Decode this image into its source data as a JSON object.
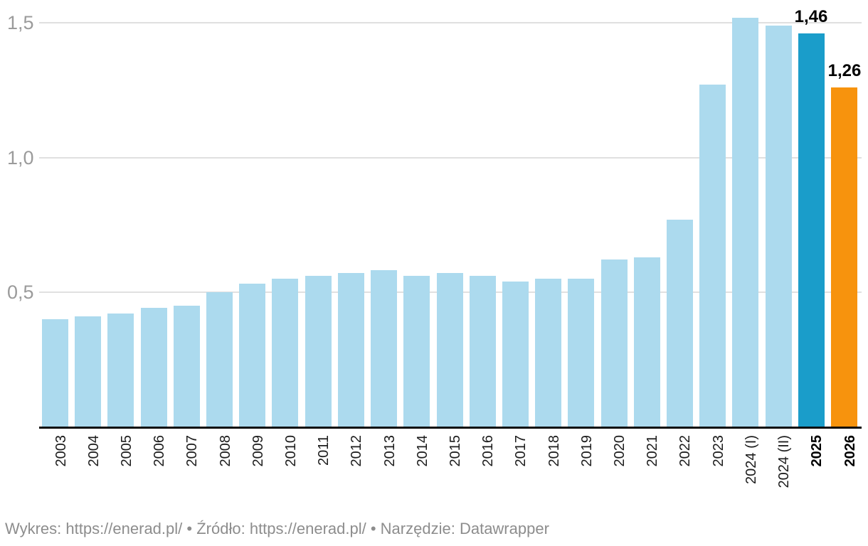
{
  "chart_data": {
    "type": "bar",
    "categories": [
      "2003",
      "2004",
      "2005",
      "2006",
      "2007",
      "2008",
      "2009",
      "2010",
      "2011",
      "2012",
      "2013",
      "2014",
      "2015",
      "2016",
      "2017",
      "2018",
      "2019",
      "2020",
      "2021",
      "2022",
      "2023",
      "2024 (I)",
      "2024 (II)",
      "2025",
      "2026"
    ],
    "values": [
      0.4,
      0.41,
      0.42,
      0.44,
      0.45,
      0.5,
      0.53,
      0.55,
      0.56,
      0.57,
      0.58,
      0.56,
      0.57,
      0.56,
      0.54,
      0.55,
      0.55,
      0.62,
      0.63,
      0.77,
      1.27,
      1.52,
      1.49,
      1.46,
      1.26
    ],
    "title": "",
    "xlabel": "",
    "ylabel": "",
    "ylim": [
      0,
      1.59
    ],
    "grid": true,
    "legend": "none",
    "y_ticks": [
      {
        "value": 0.5,
        "label": "0,5"
      },
      {
        "value": 1.0,
        "label": "1,0"
      },
      {
        "value": 1.5,
        "label": "1,5"
      }
    ],
    "decimal_separator": ",",
    "highlighted_bars": {
      "2025": "teal",
      "2026": "orange"
    },
    "bold_categories": [
      "2025",
      "2026"
    ],
    "value_labels": {
      "2025": "1,46",
      "2026": "1,26"
    },
    "colors": {
      "light": "#acdaee",
      "teal": "#1a9dca",
      "orange": "#f7930d",
      "gridline": "#e0e0e0",
      "axis_line": "#0b0b0b",
      "tick_text": "#9b9b9b",
      "label_text": "#1c1c1c"
    }
  },
  "footer": {
    "chart_label": "Wykres:",
    "chart_link": "https://enerad.pl/",
    "separator1": "•",
    "source_label": "Źródło:",
    "source_link": "https://enerad.pl/",
    "separator2": "•",
    "tool_label": "Narzędzie:",
    "tool_name": "Datawrapper"
  }
}
